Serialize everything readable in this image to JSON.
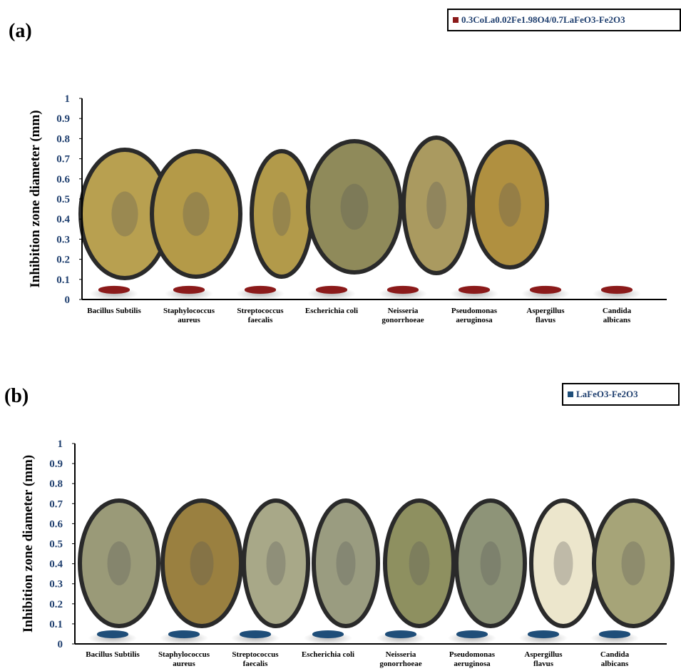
{
  "chart_data": [
    {
      "type": "bar",
      "panel_label": "(a)",
      "ylabel": "Inhibition zone diameter (mm)",
      "categories": [
        "Bacillus Subtilis",
        "Staphylococcus\naureus",
        "Streptococcus\nfaecalis",
        "Escherichia coli",
        "Neisseria\ngonorrhoeae",
        "Pseudomonas\naeruginosa",
        "Aspergillus\nflavus",
        "Candida\nalbicans"
      ],
      "series": [
        {
          "name": "0.3CoLa0.02Fe1.98O4/0.7LaFeO3-Fe2O3",
          "color": "#8b1a1a",
          "values": [
            0.05,
            0.05,
            0.05,
            0.05,
            0.05,
            0.05,
            0.05,
            0.05
          ]
        }
      ],
      "ylim": [
        0,
        1
      ],
      "yticks": [
        0,
        0.1,
        0.2,
        0.3,
        0.4,
        0.5,
        0.6,
        0.7,
        0.8,
        0.9,
        1
      ],
      "legend": "top-right"
    },
    {
      "type": "bar",
      "panel_label": "(b)",
      "ylabel": "Inhibition zone diameter (mm)",
      "categories": [
        "Bacillus Subtilis",
        "Staphylococcus\naureus",
        "Streptococcus\nfaecalis",
        "Escherichia coli",
        "Neisseria\ngonorrhoeae",
        "Pseudomonas\naeruginosa",
        "Aspergillus\nflavus",
        "Candida\nalbicans"
      ],
      "series": [
        {
          "name": "LaFeO3-Fe2O3",
          "color": "#1f4e79",
          "values": [
            0.05,
            0.05,
            0.05,
            0.05,
            0.05,
            0.05,
            0.05,
            0.05
          ]
        }
      ],
      "ylim": [
        0,
        1
      ],
      "yticks": [
        0,
        0.1,
        0.2,
        0.3,
        0.4,
        0.5,
        0.6,
        0.7,
        0.8,
        0.9,
        1
      ],
      "legend": "top-right"
    }
  ]
}
